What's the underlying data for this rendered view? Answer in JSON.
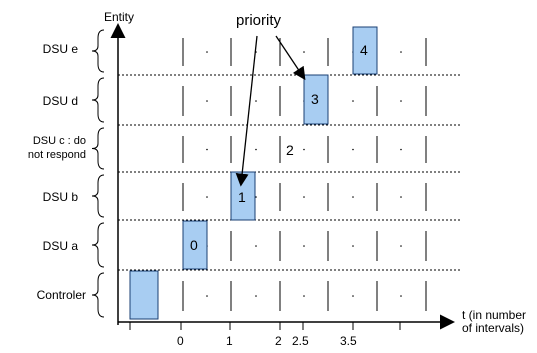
{
  "y_axis_label": "Entity",
  "x_axis_label_line1": "t (in number",
  "x_axis_label_line2": "of intervals)",
  "annotation": "priority",
  "rows": [
    {
      "label": "DSU e"
    },
    {
      "label": "DSU d"
    },
    {
      "label_line1": "DSU c : do",
      "label_line2": "not respond",
      "note": "2"
    },
    {
      "label": "DSU b"
    },
    {
      "label": "DSU a"
    },
    {
      "label": "Controler"
    }
  ],
  "slots": [
    {
      "label": "4"
    },
    {
      "label": "3"
    },
    {
      "label": "1"
    },
    {
      "label": "0"
    },
    {
      "label": ""
    }
  ],
  "x_ticks": [
    "0",
    "1",
    "2",
    "2.5",
    "3.5"
  ],
  "colors": {
    "slot_fill": "#a8cdf2",
    "slot_stroke": "#1a3f73",
    "line": "#000000"
  }
}
